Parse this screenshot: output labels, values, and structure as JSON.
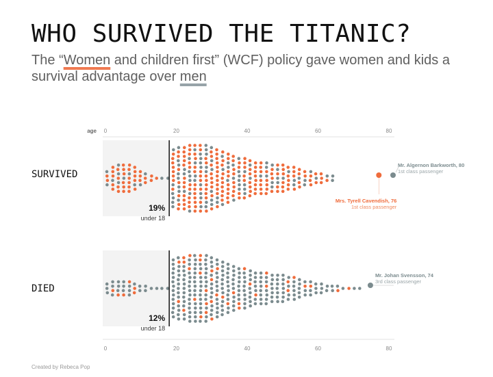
{
  "title": "WHO SURVIVED THE TITANIC?",
  "subtitle": {
    "part1": "The “",
    "women": "Women",
    "part2": " and children first” (WCF) policy gave women and kids a survival advantage over ",
    "men": "men"
  },
  "colors": {
    "women": "#ef6c3c",
    "men": "#7b8b8e",
    "shade": "#f3f3f3"
  },
  "credit": "Created by Rebeca Pop",
  "chart_data": {
    "type": "scatter",
    "subtype": "beeswarm",
    "axis_label": "age",
    "xlim": [
      0,
      80
    ],
    "ticks": [
      0,
      20,
      40,
      60,
      80
    ],
    "threshold_age": 18,
    "groups": [
      {
        "name": "SURVIVED",
        "pct": "19%",
        "pct_label": "under 18",
        "total_points": 290,
        "women_share": 0.66,
        "annotations": [
          {
            "name": "Mr. Algernon Barkworth, 80",
            "note": "1st class passenger",
            "age": 80,
            "gender": "male"
          },
          {
            "name": "Mrs. Tyrell Cavendish, 76",
            "note": "1st class passenger",
            "age": 76,
            "gender": "female"
          }
        ]
      },
      {
        "name": "DIED",
        "pct": "12%",
        "pct_label": "under 18",
        "total_points": 424,
        "women_share": 0.15,
        "annotations": [
          {
            "name": "Mr. Johan Svensson, 74",
            "note": "3rd class passenger",
            "age": 74,
            "gender": "male"
          }
        ]
      }
    ]
  }
}
